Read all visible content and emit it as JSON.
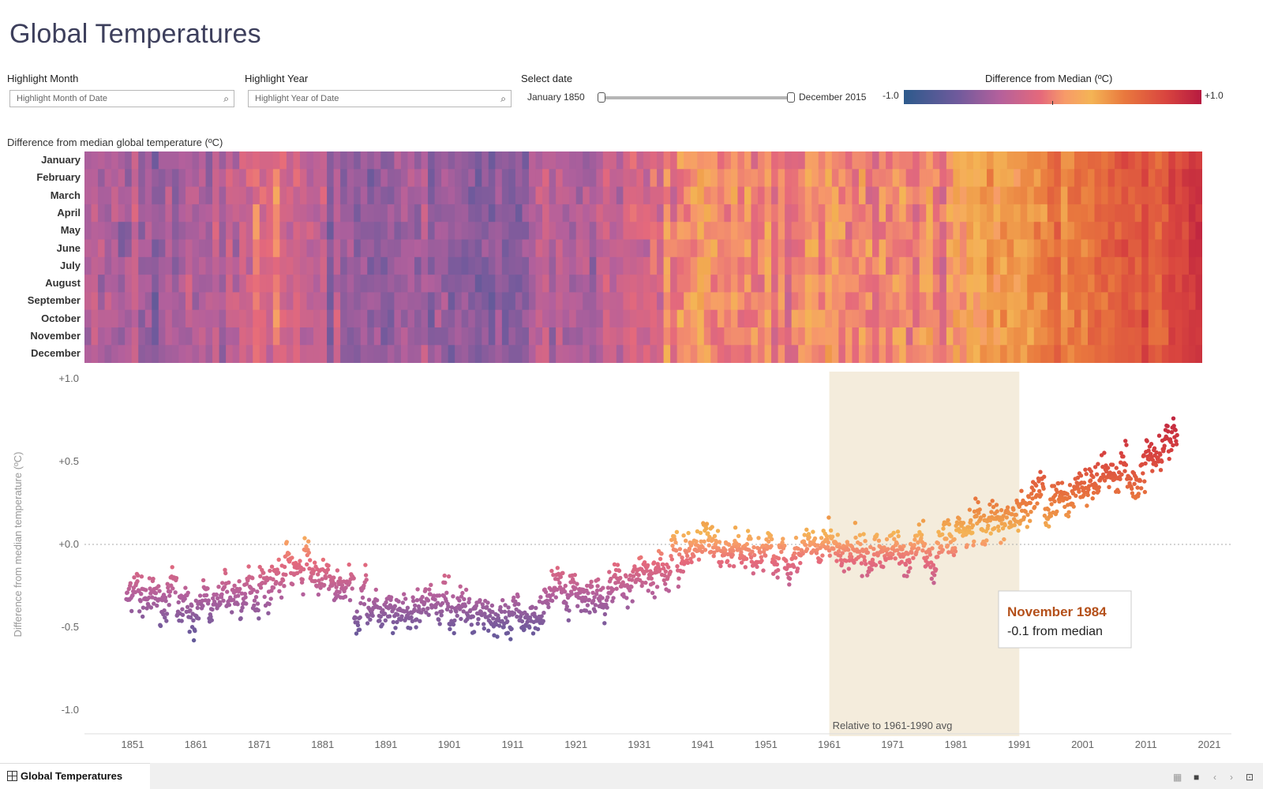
{
  "title": "Global Temperatures",
  "filters": {
    "month": {
      "label": "Highlight Month",
      "placeholder": "Highlight Month of Date"
    },
    "year": {
      "label": "Highlight Year",
      "placeholder": "Highlight Year of Date"
    },
    "date": {
      "label": "Select date",
      "start": "January 1850",
      "end": "December 2015"
    }
  },
  "legend": {
    "title": "Difference from Median (ºC)",
    "min": "-1.0",
    "max": "+1.0"
  },
  "heatmap": {
    "title": "Difference from median global temperature (ºC)",
    "months": [
      "January",
      "February",
      "March",
      "April",
      "May",
      "June",
      "July",
      "August",
      "September",
      "October",
      "November",
      "December"
    ]
  },
  "tooltip": {
    "title": "November 1984",
    "value": "-0.1 from median"
  },
  "tab": {
    "label": "Global Temperatures"
  },
  "colors": {
    "cold": "#2d5a8c",
    "neutral": "#f4b455",
    "warm": "#b61a40",
    "band": "#f4ecdc",
    "tooltip_title": "#b4501a"
  },
  "chart_data": [
    {
      "type": "heatmap",
      "title": "Difference from median global temperature (ºC)",
      "x": "year 1850-2015",
      "y": [
        "January",
        "February",
        "March",
        "April",
        "May",
        "June",
        "July",
        "August",
        "September",
        "October",
        "November",
        "December"
      ],
      "color_range": [
        -1.0,
        1.0
      ]
    },
    {
      "type": "scatter",
      "ylabel": "Difference from median temperature (ºC)",
      "y_ticks": [
        "+1.0",
        "+0.5",
        "+0.0",
        "-0.5",
        "-1.0"
      ],
      "x_ticks": [
        "1851",
        "1861",
        "1871",
        "1881",
        "1891",
        "1901",
        "1911",
        "1921",
        "1931",
        "1941",
        "1951",
        "1961",
        "1971",
        "1981",
        "1991",
        "2001",
        "2011",
        "2021"
      ],
      "xlim": [
        1850,
        2021
      ],
      "ylim": [
        -1.0,
        1.0
      ],
      "annotation": "Relative to 1961-1990 avg",
      "band": [
        1961,
        1991
      ],
      "trend": [
        {
          "year": 1850,
          "value": -0.3
        },
        {
          "year": 1860,
          "value": -0.38
        },
        {
          "year": 1870,
          "value": -0.25
        },
        {
          "year": 1878,
          "value": -0.12
        },
        {
          "year": 1890,
          "value": -0.42
        },
        {
          "year": 1900,
          "value": -0.35
        },
        {
          "year": 1910,
          "value": -0.48
        },
        {
          "year": 1920,
          "value": -0.3
        },
        {
          "year": 1930,
          "value": -0.22
        },
        {
          "year": 1940,
          "value": 0.02
        },
        {
          "year": 1950,
          "value": -0.06
        },
        {
          "year": 1960,
          "value": 0.0
        },
        {
          "year": 1970,
          "value": -0.08
        },
        {
          "year": 1980,
          "value": 0.05
        },
        {
          "year": 1990,
          "value": 0.2
        },
        {
          "year": 2000,
          "value": 0.35
        },
        {
          "year": 2010,
          "value": 0.45
        },
        {
          "year": 2015,
          "value": 0.62
        }
      ]
    }
  ]
}
